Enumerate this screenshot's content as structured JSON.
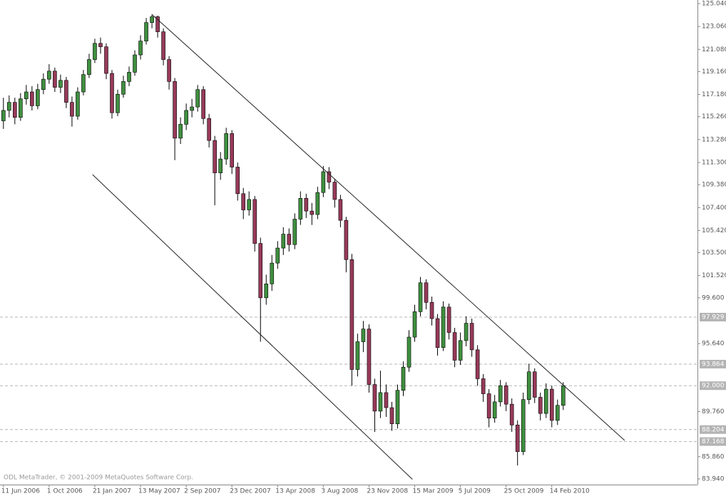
{
  "chart_data": {
    "type": "candlestick",
    "watermark": "ODL MetaTrader, © 2001-2009 MetaQuotes Software Corp.",
    "up_color": "#3f8f3f",
    "down_color": "#973a5a",
    "wick_color": "#000000",
    "line_color": "#222222",
    "hline_color": "#b4b4b4",
    "xlim": [
      -0.6,
      121.5
    ],
    "ylim": [
      83.94,
      125.04
    ],
    "yticks": [
      {
        "value": 125.04,
        "label": "125.040"
      },
      {
        "value": 123.06,
        "label": "123.060"
      },
      {
        "value": 121.08,
        "label": "121.080"
      },
      {
        "value": 119.16,
        "label": "119.160"
      },
      {
        "value": 117.18,
        "label": "117.180"
      },
      {
        "value": 115.26,
        "label": "115.260"
      },
      {
        "value": 113.28,
        "label": "113.280"
      },
      {
        "value": 111.3,
        "label": "111.300"
      },
      {
        "value": 109.38,
        "label": "109.380"
      },
      {
        "value": 107.4,
        "label": "107.400"
      },
      {
        "value": 105.42,
        "label": "105.420"
      },
      {
        "value": 103.5,
        "label": "103.500"
      },
      {
        "value": 101.52,
        "label": "101.520"
      },
      {
        "value": 99.6,
        "label": "99.600"
      },
      {
        "value": 95.64,
        "label": "95.640"
      },
      {
        "value": 89.76,
        "label": "89.760"
      },
      {
        "value": 85.86,
        "label": "85.860"
      },
      {
        "value": 83.94,
        "label": "83.940"
      }
    ],
    "xticks": [
      {
        "value": 0,
        "label": "11 Jun 2006"
      },
      {
        "value": 8,
        "label": "1 Oct 2006"
      },
      {
        "value": 16,
        "label": "21 Jan 2007"
      },
      {
        "value": 24,
        "label": "13 May 2007"
      },
      {
        "value": 32,
        "label": "2 Sep 2007"
      },
      {
        "value": 40,
        "label": "23 Dec 2007"
      },
      {
        "value": 48,
        "label": "13 Apr 2008"
      },
      {
        "value": 56,
        "label": "3 Aug 2008"
      },
      {
        "value": 64,
        "label": "23 Nov 2008"
      },
      {
        "value": 72,
        "label": "15 Mar 2009"
      },
      {
        "value": 80,
        "label": "5 Jul 2009"
      },
      {
        "value": 88,
        "label": "25 Oct 2009"
      },
      {
        "value": 96,
        "label": "14 Feb 2010"
      }
    ],
    "hlines": [
      {
        "value": 97.929,
        "label": "97.929"
      },
      {
        "value": 93.864,
        "label": "93.864"
      },
      {
        "value": 92.0,
        "label": "92.000"
      },
      {
        "value": 88.204,
        "label": "88.204"
      },
      {
        "value": 87.168,
        "label": "87.168"
      }
    ],
    "trendlines": [
      {
        "x": [
          26,
          108.75
        ],
        "y": [
          124.1,
          87.27
        ]
      },
      {
        "x": [
          15.6,
          71.6
        ],
        "y": [
          110.25,
          83.9
        ]
      }
    ],
    "open": [
      114.9,
      115.8,
      116.5,
      115.2,
      116.8,
      117.4,
      116.2,
      117.6,
      118.5,
      119.2,
      117.8,
      118.4,
      116.5,
      115.3,
      117.4,
      118.9,
      120.2,
      121.6,
      121.3,
      119.0,
      115.6,
      117.2,
      118.3,
      119.1,
      120.6,
      121.8,
      123.4,
      123.9,
      122.6,
      120.2,
      118.3,
      113.4,
      114.6,
      115.8,
      116.1,
      117.6,
      115.1,
      113.2,
      110.4,
      111.6,
      113.8,
      110.9,
      108.6,
      107.2,
      108.1,
      104.3,
      99.6,
      100.8,
      102.6,
      103.9,
      105.1,
      104.2,
      106.4,
      108.2,
      107.1,
      106.8,
      108.7,
      110.5,
      109.6,
      108.1,
      106.3,
      102.9,
      93.4,
      95.8,
      96.9,
      92.1,
      89.8,
      91.4,
      90.1,
      88.7,
      91.6,
      93.6,
      96.2,
      98.4,
      100.9,
      99.2,
      97.8,
      95.3,
      98.8,
      96.6,
      94.2,
      95.9,
      97.4,
      95.1,
      92.6,
      91.3,
      89.2,
      90.6,
      92.0,
      90.4,
      88.6,
      86.3,
      90.8,
      93.2,
      91.0,
      89.6,
      91.7,
      89.0,
      90.3
    ],
    "high": [
      116.9,
      117.1,
      116.9,
      117.3,
      118.0,
      117.9,
      118.1,
      119.0,
      119.8,
      119.5,
      118.9,
      118.7,
      117.0,
      117.8,
      119.3,
      120.7,
      122.0,
      122.1,
      121.6,
      119.3,
      117.6,
      118.8,
      119.6,
      121.0,
      122.3,
      123.8,
      124.1,
      124.0,
      122.9,
      120.5,
      118.6,
      115.2,
      116.4,
      116.8,
      118.0,
      117.9,
      115.5,
      113.6,
      112.2,
      114.3,
      114.1,
      111.3,
      109.1,
      108.8,
      108.4,
      104.8,
      101.6,
      103.3,
      104.5,
      105.7,
      105.6,
      106.9,
      108.8,
      108.6,
      107.8,
      109.2,
      111.0,
      110.9,
      109.9,
      108.5,
      106.6,
      103.4,
      96.5,
      97.6,
      97.3,
      92.6,
      93.3,
      92.1,
      90.6,
      92.1,
      94.1,
      96.8,
      99.0,
      101.4,
      101.2,
      99.7,
      98.2,
      99.3,
      99.1,
      97.0,
      96.6,
      98.0,
      97.8,
      95.5,
      93.0,
      91.7,
      91.2,
      92.5,
      92.3,
      90.9,
      89.0,
      91.4,
      93.9,
      93.5,
      91.4,
      92.2,
      92.0,
      90.8,
      92.3
    ],
    "low": [
      114.2,
      115.2,
      114.6,
      114.9,
      116.3,
      115.8,
      115.9,
      117.2,
      118.1,
      117.4,
      117.3,
      116.0,
      114.4,
      115.0,
      117.1,
      118.6,
      119.9,
      120.7,
      118.5,
      115.1,
      115.3,
      116.9,
      117.9,
      118.8,
      120.2,
      121.5,
      122.9,
      122.1,
      119.7,
      117.6,
      111.5,
      112.9,
      114.1,
      115.2,
      115.7,
      114.6,
      112.6,
      107.6,
      109.8,
      111.1,
      110.3,
      108.0,
      106.4,
      106.7,
      103.6,
      95.8,
      99.0,
      100.2,
      102.1,
      103.3,
      103.6,
      103.8,
      105.9,
      106.5,
      105.9,
      106.4,
      108.3,
      109.0,
      107.4,
      105.7,
      101.8,
      92.0,
      92.8,
      94.9,
      91.4,
      88.0,
      89.2,
      89.3,
      88.1,
      88.3,
      91.1,
      93.2,
      95.8,
      98.0,
      98.6,
      97.2,
      94.6,
      95.0,
      96.0,
      93.6,
      93.8,
      95.4,
      94.5,
      92.0,
      90.6,
      88.4,
      88.8,
      90.2,
      89.8,
      88.0,
      85.1,
      86.0,
      90.4,
      90.5,
      89.0,
      89.2,
      88.4,
      88.6,
      89.9
    ],
    "close": [
      115.8,
      116.5,
      115.2,
      116.8,
      117.4,
      116.2,
      117.6,
      118.5,
      119.2,
      117.8,
      118.4,
      116.5,
      115.3,
      117.4,
      118.9,
      120.2,
      121.6,
      121.3,
      119.0,
      115.6,
      117.2,
      118.3,
      119.1,
      120.6,
      121.8,
      123.4,
      123.9,
      122.6,
      120.2,
      118.3,
      113.4,
      114.6,
      115.8,
      116.1,
      117.6,
      115.1,
      113.2,
      110.4,
      111.6,
      113.8,
      110.9,
      108.6,
      107.2,
      108.1,
      104.3,
      99.6,
      100.8,
      102.6,
      103.9,
      105.1,
      104.2,
      106.4,
      108.2,
      107.1,
      106.8,
      108.7,
      110.5,
      109.6,
      108.1,
      106.3,
      102.9,
      93.4,
      95.8,
      96.9,
      92.1,
      89.8,
      91.4,
      90.1,
      88.7,
      91.6,
      93.6,
      96.2,
      98.4,
      100.9,
      99.2,
      97.8,
      95.3,
      98.8,
      96.6,
      94.2,
      95.9,
      97.4,
      95.1,
      92.6,
      91.3,
      89.2,
      90.6,
      92.0,
      90.4,
      88.6,
      86.3,
      90.8,
      93.2,
      91.0,
      89.6,
      91.7,
      89.0,
      90.3,
      92.0
    ]
  }
}
